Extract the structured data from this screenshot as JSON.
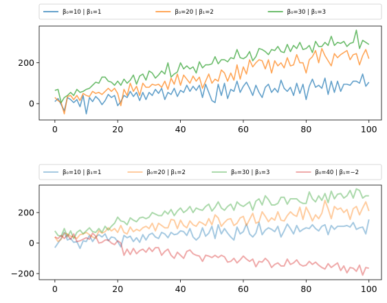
{
  "chart_data": [
    {
      "type": "line",
      "title": "",
      "xlabel": "",
      "ylabel": "",
      "xlim": [
        -5,
        104
      ],
      "ylim": [
        -80,
        380
      ],
      "xticks": [
        0,
        20,
        40,
        60,
        80,
        100
      ],
      "yticks": [
        0,
        200
      ],
      "grid": false,
      "legend_position": "above",
      "series": [
        {
          "name": "β₀=10 | β₁=1",
          "color": "#1f77b4",
          "opacity": 0.7,
          "y": [
            10,
            25,
            -5,
            -35,
            30,
            20,
            5,
            20,
            -15,
            40,
            -50,
            30,
            10,
            35,
            20,
            -5,
            15,
            45,
            30,
            40,
            -10,
            10,
            40,
            30,
            60,
            35,
            55,
            15,
            55,
            20,
            55,
            40,
            70,
            50,
            75,
            20,
            55,
            45,
            75,
            35,
            65,
            55,
            90,
            60,
            85,
            65,
            90,
            30,
            95,
            55,
            15,
            5,
            95,
            40,
            100,
            25,
            70,
            60,
            110,
            55,
            85,
            105,
            75,
            40,
            90,
            55,
            30,
            80,
            95,
            55,
            75,
            55,
            115,
            75,
            60,
            80,
            40,
            100,
            50,
            95,
            20,
            85,
            120,
            80,
            90,
            75,
            125,
            45,
            110,
            55,
            110,
            60,
            95,
            95,
            90,
            110,
            110,
            100,
            145,
            85,
            105
          ]
        },
        {
          "name": "β₀=20 | β₁=2",
          "color": "#ff7f0e",
          "opacity": 0.7,
          "y": [
            30,
            15,
            5,
            -50,
            35,
            40,
            20,
            40,
            15,
            50,
            40,
            35,
            60,
            50,
            55,
            45,
            60,
            75,
            60,
            75,
            50,
            -10,
            70,
            40,
            100,
            60,
            85,
            40,
            100,
            80,
            80,
            95,
            90,
            95,
            80,
            110,
            70,
            125,
            95,
            145,
            90,
            140,
            120,
            100,
            135,
            110,
            130,
            75,
            110,
            145,
            100,
            120,
            110,
            165,
            150,
            110,
            150,
            115,
            190,
            120,
            180,
            145,
            215,
            180,
            200,
            215,
            210,
            170,
            215,
            150,
            210,
            185,
            200,
            175,
            225,
            185,
            190,
            240,
            200,
            200,
            150,
            215,
            230,
            260,
            200,
            270,
            235,
            210,
            185,
            245,
            225,
            240,
            250,
            260,
            215,
            240,
            245,
            190,
            235,
            265,
            220
          ]
        },
        {
          "name": "β₀=30 | β₁=3",
          "color": "#2ca02c",
          "opacity": 0.7,
          "y": [
            65,
            70,
            5,
            30,
            40,
            55,
            40,
            70,
            55,
            60,
            70,
            75,
            90,
            105,
            100,
            130,
            130,
            110,
            105,
            90,
            110,
            90,
            120,
            100,
            115,
            140,
            95,
            135,
            145,
            115,
            160,
            150,
            125,
            140,
            160,
            145,
            200,
            130,
            145,
            155,
            200,
            170,
            185,
            170,
            180,
            150,
            205,
            175,
            190,
            190,
            195,
            230,
            195,
            215,
            215,
            205,
            225,
            220,
            265,
            225,
            220,
            230,
            255,
            210,
            230,
            270,
            265,
            255,
            240,
            265,
            260,
            280,
            255,
            250,
            290,
            255,
            285,
            270,
            300,
            265,
            270,
            285,
            250,
            305,
            280,
            280,
            300,
            285,
            330,
            285,
            300,
            295,
            305,
            280,
            295,
            300,
            360,
            270,
            310,
            300,
            290
          ]
        }
      ]
    },
    {
      "type": "line",
      "title": "",
      "xlabel": "",
      "ylabel": "",
      "xlim": [
        -5,
        104
      ],
      "ylim": [
        -240,
        380
      ],
      "xticks": [
        0,
        20,
        40,
        60,
        80,
        100
      ],
      "yticks": [
        -200,
        0,
        200
      ],
      "grid": false,
      "legend_position": "above",
      "series": [
        {
          "name": "β₀=10 | β₁=1",
          "color": "#1f77b4",
          "opacity": 0.4,
          "y": [
            -30,
            0,
            30,
            70,
            20,
            30,
            5,
            10,
            -35,
            15,
            10,
            50,
            10,
            40,
            55,
            40,
            60,
            15,
            40,
            35,
            10,
            -25,
            50,
            35,
            45,
            10,
            35,
            5,
            55,
            20,
            55,
            65,
            40,
            30,
            70,
            60,
            35,
            70,
            55,
            60,
            80,
            75,
            50,
            95,
            40,
            20,
            40,
            100,
            45,
            65,
            110,
            30,
            120,
            60,
            95,
            65,
            40,
            20,
            105,
            60,
            75,
            125,
            60,
            40,
            65,
            135,
            55,
            85,
            100,
            90,
            75,
            110,
            40,
            80,
            125,
            95,
            60,
            115,
            75,
            90,
            100,
            95,
            120,
            95,
            80,
            110,
            120,
            55,
            115,
            90,
            110,
            110,
            110,
            115,
            105,
            135,
            90,
            100,
            105,
            60,
            155
          ]
        },
        {
          "name": "β₀=20 | β₁=2",
          "color": "#ff7f0e",
          "opacity": 0.4,
          "y": [
            40,
            10,
            25,
            65,
            60,
            45,
            40,
            30,
            55,
            60,
            70,
            55,
            40,
            30,
            80,
            65,
            75,
            100,
            80,
            95,
            70,
            115,
            70,
            60,
            105,
            75,
            90,
            80,
            100,
            110,
            95,
            130,
            80,
            130,
            115,
            100,
            100,
            155,
            150,
            95,
            150,
            115,
            100,
            145,
            120,
            110,
            140,
            130,
            115,
            160,
            120,
            185,
            165,
            110,
            135,
            155,
            160,
            115,
            130,
            165,
            175,
            115,
            155,
            195,
            130,
            140,
            205,
            175,
            140,
            165,
            150,
            205,
            150,
            145,
            180,
            205,
            185,
            175,
            235,
            155,
            235,
            195,
            145,
            185,
            160,
            195,
            280,
            225,
            160,
            240,
            220,
            230,
            200,
            220,
            155,
            225,
            240,
            185,
            230,
            270,
            210
          ]
        },
        {
          "name": "β₀=30 | β₁=3",
          "color": "#2ca02c",
          "opacity": 0.4,
          "y": [
            80,
            50,
            45,
            95,
            40,
            80,
            30,
            70,
            85,
            60,
            80,
            100,
            75,
            70,
            95,
            70,
            110,
            85,
            110,
            130,
            170,
            145,
            140,
            120,
            165,
            150,
            140,
            165,
            170,
            160,
            170,
            200,
            190,
            180,
            180,
            210,
            190,
            220,
            180,
            210,
            230,
            200,
            215,
            240,
            200,
            230,
            220,
            215,
            240,
            255,
            210,
            235,
            270,
            230,
            215,
            240,
            255,
            215,
            270,
            250,
            240,
            255,
            270,
            215,
            275,
            290,
            250,
            310,
            285,
            250,
            250,
            260,
            300,
            300,
            255,
            290,
            290,
            290,
            270,
            260,
            260,
            335,
            290,
            270,
            310,
            280,
            325,
            265,
            340,
            290,
            320,
            325,
            295,
            310,
            345,
            295,
            355,
            345,
            295,
            310,
            310
          ]
        },
        {
          "name": "β₀=40 | β₁=−2",
          "color": "#d62728",
          "opacity": 0.4,
          "y": [
            40,
            30,
            50,
            30,
            55,
            25,
            60,
            10,
            15,
            25,
            35,
            25,
            65,
            45,
            0,
            5,
            20,
            20,
            0,
            -10,
            15,
            0,
            -80,
            -40,
            -75,
            -35,
            -70,
            -50,
            -40,
            -60,
            -30,
            -55,
            -30,
            -30,
            -80,
            -55,
            -40,
            -80,
            -100,
            -60,
            -80,
            -100,
            -55,
            -45,
            -70,
            -80,
            -85,
            -120,
            -80,
            -85,
            -95,
            -80,
            -95,
            -80,
            -90,
            -125,
            -120,
            -100,
            -130,
            -110,
            -85,
            -105,
            -120,
            -105,
            -155,
            -120,
            -125,
            -100,
            -120,
            -160,
            -140,
            -130,
            -150,
            -150,
            -105,
            -140,
            -130,
            -110,
            -140,
            -150,
            -145,
            -120,
            -140,
            -125,
            -145,
            -160,
            -170,
            -135,
            -160,
            -145,
            -130,
            -180,
            -150,
            -195,
            -160,
            -165,
            -185,
            -145,
            -210,
            -160,
            -165
          ]
        }
      ]
    }
  ]
}
